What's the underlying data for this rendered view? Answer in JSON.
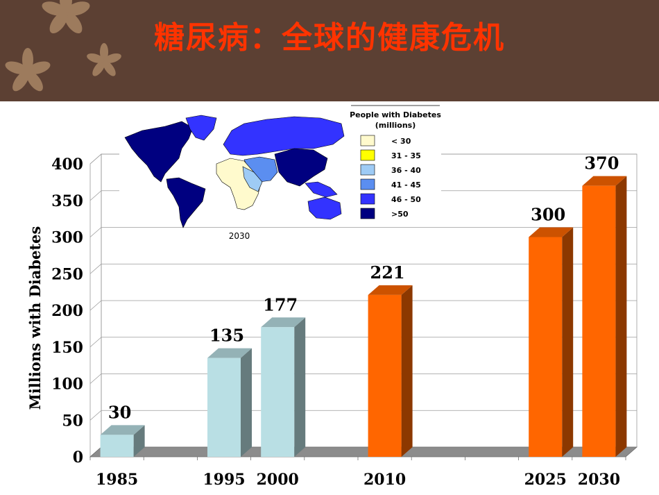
{
  "slide": {
    "title": "糖尿病：全球的健康危机"
  },
  "colors": {
    "banner": "#5c4033",
    "title": "#ff3300",
    "historical_bar": "#b9dfe4",
    "projected_bar": "#ff6600",
    "floor": "#8c8c8c"
  },
  "map": {
    "year_label": "2030",
    "legend": {
      "title_line1": "People with Diabetes",
      "title_line2": "(millions)",
      "items": [
        {
          "label": "< 30",
          "color": "#fffacd"
        },
        {
          "label": "31 - 35",
          "color": "#ffff00"
        },
        {
          "label": "36 - 40",
          "color": "#9ecbf5"
        },
        {
          "label": "41 - 45",
          "color": "#5b8ef0"
        },
        {
          "label": "46 - 50",
          "color": "#3333ff"
        },
        {
          "label": ">50",
          "color": "#000080"
        }
      ]
    }
  },
  "chart_data": {
    "type": "bar",
    "ylabel": "Millions with Diabetes",
    "xlabel": "",
    "ylim": [
      0,
      400
    ],
    "yticks": [
      0,
      50,
      100,
      150,
      200,
      250,
      300,
      350,
      400
    ],
    "grid": true,
    "categories": [
      "1985",
      "1995",
      "2000",
      "2010",
      "2025",
      "2030"
    ],
    "values": [
      30,
      135,
      177,
      221,
      300,
      370
    ],
    "data_labels": [
      "30",
      "135",
      "177",
      "221",
      "300",
      "370"
    ],
    "x_slots": [
      "1985",
      "1990",
      "1995",
      "2000",
      "2005",
      "2010",
      "2015",
      "2020",
      "2025",
      "2030"
    ]
  }
}
